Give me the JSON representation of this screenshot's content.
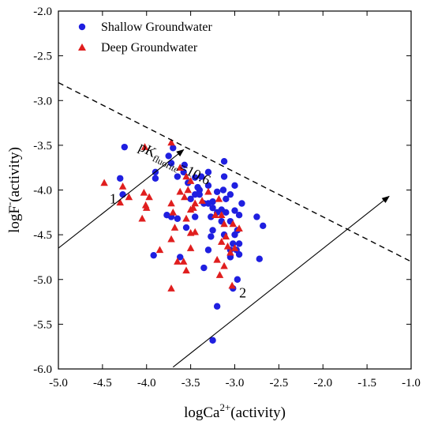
{
  "chart_data": {
    "type": "scatter",
    "xlim": [
      -5.0,
      -1.0
    ],
    "ylim": [
      -6.0,
      -2.0
    ],
    "x_ticks": [
      "-5.0",
      "-4.5",
      "-4.0",
      "-3.5",
      "-3.0",
      "-2.5",
      "-2.0",
      "-1.5",
      "-1.0"
    ],
    "y_ticks": [
      "-2.0",
      "-2.5",
      "-3.0",
      "-3.5",
      "-4.0",
      "-4.5",
      "-5.0",
      "-5.5",
      "-6.0"
    ],
    "xlabel": {
      "main": "logCa",
      "sup": "2+",
      "rest": "(activity)"
    },
    "ylabel": {
      "main": "logF",
      "sup": "-",
      "rest": "(activity)"
    },
    "legend_position": "top-left",
    "grid": false,
    "series": [
      {
        "name": "Shallow Groundwater",
        "marker": "circle",
        "color": "#1f1fe0",
        "points": [
          [
            -4.25,
            -3.52
          ],
          [
            -3.7,
            -3.53
          ],
          [
            -3.75,
            -3.62
          ],
          [
            -3.72,
            -3.7
          ],
          [
            -3.57,
            -3.72
          ],
          [
            -3.58,
            -3.8
          ],
          [
            -3.65,
            -3.85
          ],
          [
            -3.9,
            -3.8
          ],
          [
            -3.9,
            -3.87
          ],
          [
            -4.3,
            -3.87
          ],
          [
            -4.27,
            -4.05
          ],
          [
            -3.53,
            -3.92
          ],
          [
            -3.45,
            -3.86
          ],
          [
            -3.38,
            -3.85
          ],
          [
            -3.3,
            -3.8
          ],
          [
            -3.42,
            -3.97
          ],
          [
            -3.4,
            -4.0
          ],
          [
            -3.3,
            -3.95
          ],
          [
            -3.12,
            -3.68
          ],
          [
            -3.12,
            -3.85
          ],
          [
            -3.5,
            -4.1
          ],
          [
            -3.45,
            -4.05
          ],
          [
            -3.35,
            -4.15
          ],
          [
            -3.25,
            -4.13
          ],
          [
            -3.2,
            -4.02
          ],
          [
            -3.13,
            -4.0
          ],
          [
            -3.1,
            -4.1
          ],
          [
            -3.0,
            -3.95
          ],
          [
            -3.05,
            -4.05
          ],
          [
            -2.92,
            -4.15
          ],
          [
            -2.95,
            -4.28
          ],
          [
            -3.25,
            -4.2
          ],
          [
            -3.2,
            -4.25
          ],
          [
            -3.15,
            -4.22
          ],
          [
            -3.1,
            -4.25
          ],
          [
            -3.05,
            -4.35
          ],
          [
            -3.15,
            -4.35
          ],
          [
            -3.27,
            -4.3
          ],
          [
            -3.3,
            -4.15
          ],
          [
            -3.45,
            -4.3
          ],
          [
            -3.55,
            -4.42
          ],
          [
            -3.65,
            -4.32
          ],
          [
            -3.72,
            -4.3
          ],
          [
            -3.77,
            -4.28
          ],
          [
            -2.68,
            -4.4
          ],
          [
            -2.75,
            -4.3
          ],
          [
            -2.97,
            -4.45
          ],
          [
            -3.0,
            -4.5
          ],
          [
            -2.95,
            -4.6
          ],
          [
            -3.02,
            -4.6
          ],
          [
            -3.05,
            -4.75
          ],
          [
            -2.95,
            -4.72
          ],
          [
            -2.98,
            -4.67
          ],
          [
            -3.05,
            -4.67
          ],
          [
            -2.72,
            -4.77
          ],
          [
            -3.25,
            -4.45
          ],
          [
            -3.27,
            -4.52
          ],
          [
            -3.3,
            -4.67
          ],
          [
            -3.12,
            -4.5
          ],
          [
            -3.62,
            -4.75
          ],
          [
            -3.92,
            -4.73
          ],
          [
            -3.35,
            -4.87
          ],
          [
            -2.97,
            -5.0
          ],
          [
            -3.02,
            -5.1
          ],
          [
            -3.2,
            -5.3
          ],
          [
            -3.25,
            -5.68
          ],
          [
            -3.4,
            -4.05
          ],
          [
            -3.0,
            -4.23
          ]
        ]
      },
      {
        "name": "Deep Groundwater",
        "marker": "triangle",
        "color": "#e01e1e",
        "points": [
          [
            -4.48,
            -3.92
          ],
          [
            -4.3,
            -4.14
          ],
          [
            -4.27,
            -3.96
          ],
          [
            -4.2,
            -4.08
          ],
          [
            -4.03,
            -4.03
          ],
          [
            -3.97,
            -4.08
          ],
          [
            -4.01,
            -4.17
          ],
          [
            -4.0,
            -4.2
          ],
          [
            -4.05,
            -4.32
          ],
          [
            -4.02,
            -3.52
          ],
          [
            -3.72,
            -3.47
          ],
          [
            -3.72,
            -4.15
          ],
          [
            -3.7,
            -4.25
          ],
          [
            -3.68,
            -4.42
          ],
          [
            -3.72,
            -4.55
          ],
          [
            -3.85,
            -4.67
          ],
          [
            -3.62,
            -3.75
          ],
          [
            -3.55,
            -3.85
          ],
          [
            -3.62,
            -4.02
          ],
          [
            -3.57,
            -4.08
          ],
          [
            -3.53,
            -4.0
          ],
          [
            -3.5,
            -3.9
          ],
          [
            -3.45,
            -4.15
          ],
          [
            -3.5,
            -4.22
          ],
          [
            -3.55,
            -4.32
          ],
          [
            -3.47,
            -4.2
          ],
          [
            -3.37,
            -4.12
          ],
          [
            -3.3,
            -4.02
          ],
          [
            -3.18,
            -4.1
          ],
          [
            -3.22,
            -4.28
          ],
          [
            -3.15,
            -4.28
          ],
          [
            -3.12,
            -4.38
          ],
          [
            -3.1,
            -4.52
          ],
          [
            -3.15,
            -4.58
          ],
          [
            -3.08,
            -4.63
          ],
          [
            -3.05,
            -4.7
          ],
          [
            -3.0,
            -4.65
          ],
          [
            -2.95,
            -4.43
          ],
          [
            -3.02,
            -4.38
          ],
          [
            -3.12,
            -4.85
          ],
          [
            -3.17,
            -4.95
          ],
          [
            -3.2,
            -4.78
          ],
          [
            -3.58,
            -4.8
          ],
          [
            -3.55,
            -4.9
          ],
          [
            -3.65,
            -4.8
          ],
          [
            -3.5,
            -4.65
          ],
          [
            -3.72,
            -5.1
          ],
          [
            -3.03,
            -5.07
          ],
          [
            -3.45,
            -4.47
          ],
          [
            -3.5,
            -4.48
          ]
        ]
      }
    ],
    "reference_line": {
      "label_main": "pK",
      "label_sub": "fluorite",
      "label_rest": "=10.6",
      "slope": -0.5,
      "intercept": -5.3,
      "style": "dashed"
    },
    "arrows": [
      {
        "label": "1",
        "from": [
          -5.0,
          -4.65
        ],
        "to": [
          -3.58,
          -3.55
        ]
      },
      {
        "label": "2",
        "from": [
          -3.7,
          -5.98
        ],
        "to": [
          -1.25,
          -4.07
        ]
      }
    ]
  }
}
